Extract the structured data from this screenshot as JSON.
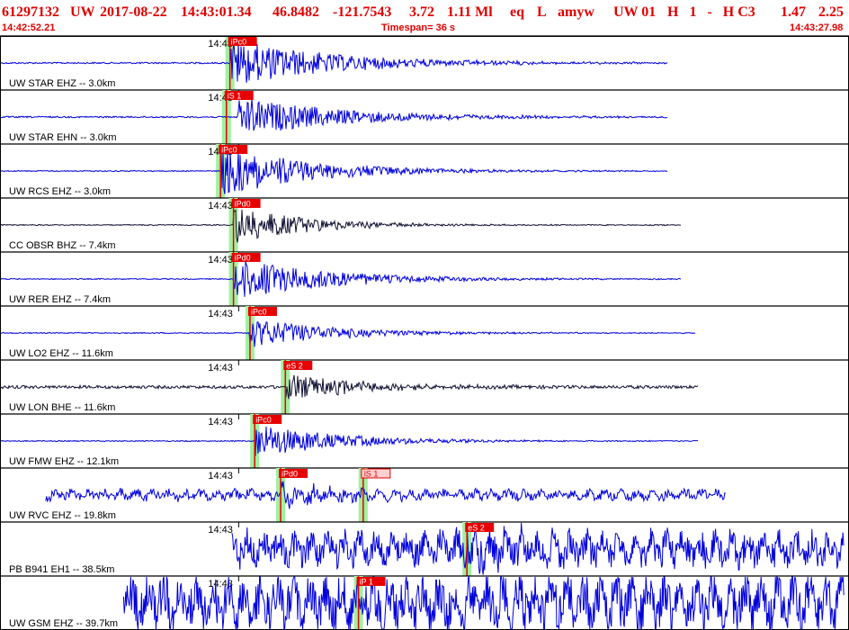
{
  "header": {
    "event_id": "61297132",
    "network": "UW",
    "date": "2017-08-22",
    "time": "14:43:01.34",
    "lat": "46.8482",
    "lon": "-121.7543",
    "depth": "3.72",
    "magnitude": "1.11 Ml",
    "event_type": "eq",
    "flags": "L",
    "analyst": "amyw",
    "version_info": "UW 01",
    "quality_flags": "H   1   -   H C3",
    "rms": "1.47",
    "erh": "2.25",
    "start_time": "14:42:52.21",
    "timespan_label": "Timespan=  36 s",
    "end_time": "14:43:27.98"
  },
  "colors": {
    "header_text": "#e00000",
    "trace_blue": "#0000dd",
    "trace_black": "#111133",
    "pick_fill": "#e80000",
    "pick_s_light": "#ffd0d0",
    "pick_window": "#a0f0a0",
    "border": "#000000"
  },
  "chart_data": {
    "type": "seismogram",
    "time_start": "14:42:52.21",
    "time_end": "14:43:27.98",
    "timespan_s": 36,
    "channels": [
      {
        "label": "UW STAR EHZ -- 3.0km",
        "tick": "14:43",
        "color": "blue",
        "onset_s": 9.8,
        "end_s": 28.3,
        "noise": 0.03,
        "amp": 0.95,
        "decay": 0.22,
        "picks": [
          {
            "label": "iPc0",
            "t": 9.75,
            "type": "P"
          }
        ]
      },
      {
        "label": "UW STAR EHN -- 3.0km",
        "tick": "14:43",
        "color": "blue",
        "onset_s": 10.1,
        "end_s": 28.3,
        "noise": 0.03,
        "amp": 0.8,
        "decay": 0.22,
        "picks": [
          {
            "label": "iS 1",
            "t": 9.6,
            "type": "S"
          }
        ]
      },
      {
        "label": "UW RCS EHZ -- 3.0km",
        "tick": "14:43",
        "color": "blue",
        "onset_s": 9.35,
        "end_s": 28.3,
        "noise": 0.02,
        "amp": 1.0,
        "decay": 0.2,
        "picks": [
          {
            "label": "iPc0",
            "t": 9.35,
            "type": "P"
          }
        ]
      },
      {
        "label": "CC OBSR BHZ -- 7.4km",
        "tick": "14:43",
        "color": "black",
        "onset_s": 9.9,
        "end_s": 28.9,
        "noise": 0.02,
        "amp": 0.8,
        "decay": 0.15,
        "picks": [
          {
            "label": "iPd0",
            "t": 9.9,
            "type": "P"
          }
        ]
      },
      {
        "label": "UW RER EHZ -- 7.4km",
        "tick": "14:43",
        "color": "blue",
        "onset_s": 9.9,
        "end_s": 28.9,
        "noise": 0.02,
        "amp": 0.85,
        "decay": 0.2,
        "picks": [
          {
            "label": "iPd0",
            "t": 9.9,
            "type": "P"
          }
        ]
      },
      {
        "label": "UW LO2 EHZ -- 11.6km",
        "tick": "14:43",
        "color": "blue",
        "onset_s": 10.6,
        "end_s": 29.5,
        "noise": 0.02,
        "amp": 0.6,
        "decay": 0.18,
        "picks": [
          {
            "label": "iPc0",
            "t": 10.6,
            "type": "P"
          }
        ]
      },
      {
        "label": "UW LON BHE -- 11.6km",
        "tick": "14:43",
        "color": "black",
        "onset_s": 12.1,
        "end_s": 29.6,
        "noise": 0.06,
        "amp": 0.55,
        "decay": 0.16,
        "picks": [
          {
            "label": "eS 2",
            "t": 12.1,
            "type": "S"
          }
        ]
      },
      {
        "label": "UW FMW EHZ -- 12.1km",
        "tick": "14:43",
        "color": "blue",
        "onset_s": 10.8,
        "end_s": 29.6,
        "noise": 0.02,
        "amp": 0.7,
        "decay": 0.18,
        "picks": [
          {
            "label": "iPc0",
            "t": 10.8,
            "type": "P"
          }
        ]
      },
      {
        "label": "UW RVC EHZ -- 19.8km",
        "tick": "14:43",
        "color": "blue",
        "onset_s": 11.9,
        "end_s": 30.8,
        "noise": 0.18,
        "amp": 0.45,
        "decay": 0.1,
        "picks": [
          {
            "label": "iPd0",
            "t": 11.9,
            "type": "P"
          },
          {
            "label": "iS 1",
            "t": 15.4,
            "type": "S"
          }
        ]
      },
      {
        "label": "PB B941 EH1 -- 38.5km",
        "tick": "14:43",
        "color": "blue",
        "onset_s": 19.8,
        "end_s": 35.8,
        "noise": 0.55,
        "amp": 0.8,
        "decay": 0.08,
        "picks": [
          {
            "label": "eS 2",
            "t": 19.8,
            "type": "S"
          }
        ]
      },
      {
        "label": "UW GSM EHZ -- 39.7km",
        "tick": "14:43",
        "color": "blue",
        "onset_s": 15.2,
        "end_s": 35.8,
        "noise": 0.85,
        "amp": 0.95,
        "decay": 0.05,
        "picks": [
          {
            "label": "iP 1",
            "t": 15.2,
            "type": "P"
          }
        ]
      }
    ]
  }
}
